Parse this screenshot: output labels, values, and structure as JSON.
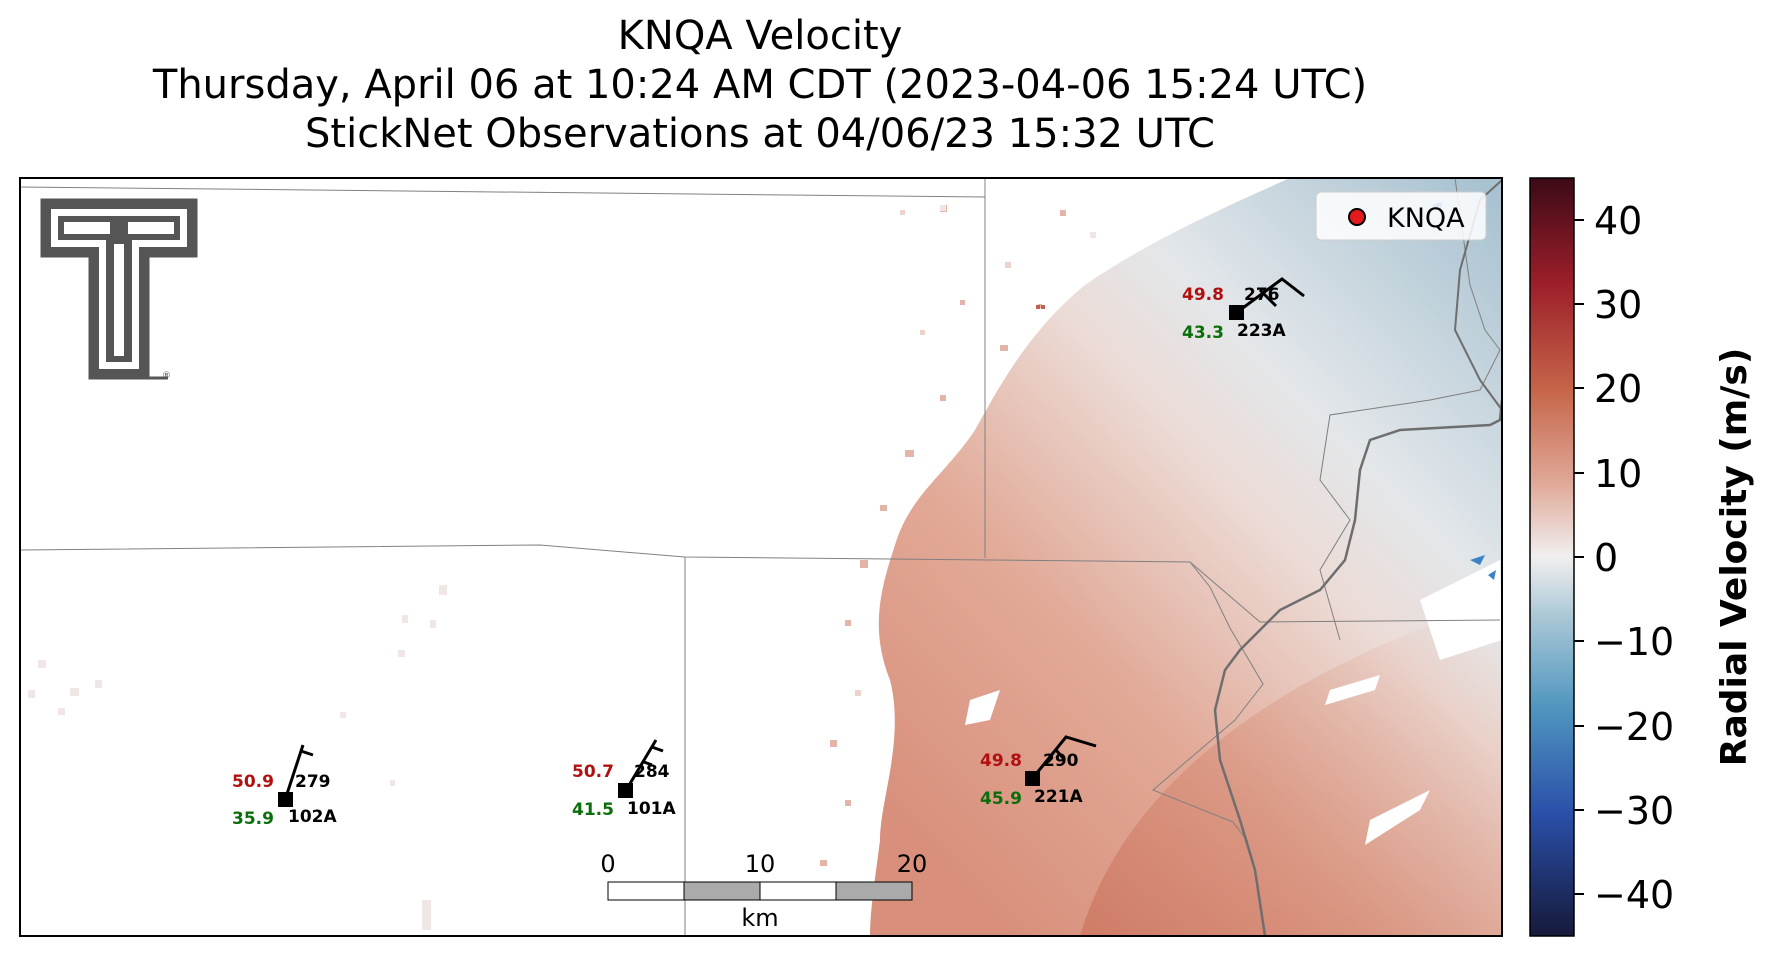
{
  "title": {
    "line1": "KNQA Velocity",
    "line2": "Thursday, April 06 at 10:24 AM CDT (2023-04-06 15:24 UTC)",
    "line3": "StickNet Observations at 04/06/23 15:32 UTC"
  },
  "legend": {
    "label": "KNQA",
    "marker_color": "#e41a1c"
  },
  "colorbar": {
    "label": "Radial Velocity (m/s)",
    "ticks": [
      "40",
      "30",
      "20",
      "10",
      "0",
      "−10",
      "−20",
      "−30",
      "−40"
    ],
    "range": [
      -45,
      45
    ],
    "colormap": "blue-white-red (balance)"
  },
  "scalebar": {
    "ticks": [
      "0",
      "10",
      "20"
    ],
    "unit": "km"
  },
  "logo": {
    "name": "Texas Tech Double T",
    "registered": "®"
  },
  "stations": [
    {
      "id": "102A",
      "temp": "50.9",
      "dewpoint": "35.9",
      "wind_dir": "279"
    },
    {
      "id": "101A",
      "temp": "50.7",
      "dewpoint": "41.5",
      "wind_dir": "284"
    },
    {
      "id": "221A",
      "temp": "49.8",
      "dewpoint": "45.9",
      "wind_dir": "290"
    },
    {
      "id": "223A",
      "temp": "49.8",
      "dewpoint": "43.3",
      "wind_dir": "276"
    }
  ],
  "colors": {
    "temperature": "#b01010",
    "dewpoint": "#0a6e0a",
    "velocity_positive": "#c9715e",
    "velocity_negative": "#6d9fb8"
  }
}
